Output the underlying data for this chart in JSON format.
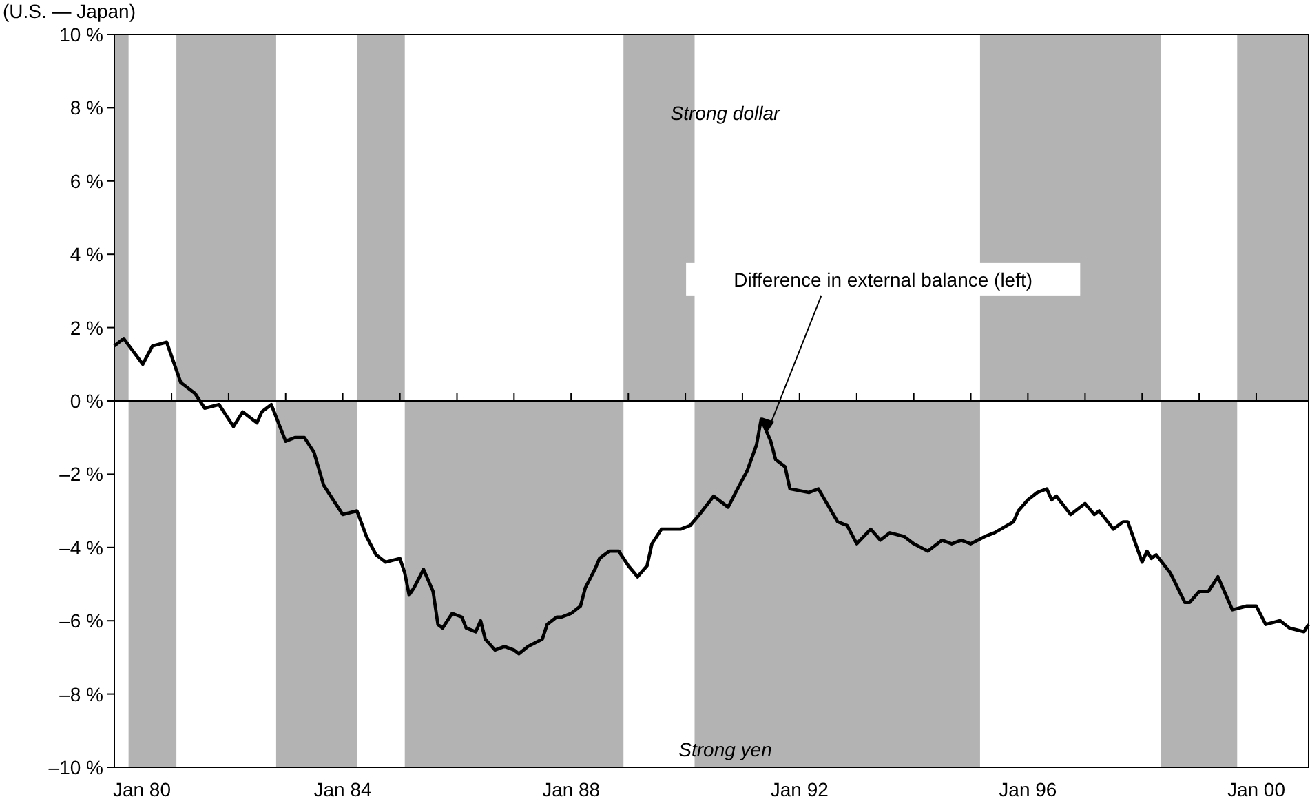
{
  "chart_data": {
    "type": "line",
    "ylabel": "(U.S. — Japan)",
    "xlim": [
      "1980-01",
      "2000-12"
    ],
    "xticks": [
      {
        "value": "1980-01",
        "label": "Jan 80"
      },
      {
        "value": "1981-01",
        "label": null
      },
      {
        "value": "1982-01",
        "label": null
      },
      {
        "value": "1983-01",
        "label": null
      },
      {
        "value": "1984-01",
        "label": "Jan 84"
      },
      {
        "value": "1985-01",
        "label": null
      },
      {
        "value": "1986-01",
        "label": null
      },
      {
        "value": "1987-01",
        "label": null
      },
      {
        "value": "1988-01",
        "label": "Jan 88"
      },
      {
        "value": "1989-01",
        "label": null
      },
      {
        "value": "1990-01",
        "label": null
      },
      {
        "value": "1991-01",
        "label": null
      },
      {
        "value": "1992-01",
        "label": "Jan 92"
      },
      {
        "value": "1993-01",
        "label": null
      },
      {
        "value": "1994-01",
        "label": null
      },
      {
        "value": "1995-01",
        "label": null
      },
      {
        "value": "1996-01",
        "label": "Jan 96"
      },
      {
        "value": "1997-01",
        "label": null
      },
      {
        "value": "1998-01",
        "label": null
      },
      {
        "value": "1999-01",
        "label": null
      },
      {
        "value": "2000-01",
        "label": "Jan 00"
      }
    ],
    "ylim": [
      -10,
      10
    ],
    "yticks": [
      {
        "value": -10,
        "label": "–10 %"
      },
      {
        "value": -8,
        "label": "–8 %"
      },
      {
        "value": -6,
        "label": "–6 %"
      },
      {
        "value": -4,
        "label": "–4 %"
      },
      {
        "value": -2,
        "label": "–2 %"
      },
      {
        "value": 0,
        "label": "0 %"
      },
      {
        "value": 2,
        "label": "2 %"
      },
      {
        "value": 4,
        "label": "4 %"
      },
      {
        "value": 6,
        "label": "6 %"
      },
      {
        "value": 8,
        "label": "8 %"
      },
      {
        "value": 10,
        "label": "10 %"
      }
    ],
    "annotations": [
      "Strong dollar",
      "Strong yen",
      {
        "text": "Difference in external balance (left)",
        "x": "1991-06",
        "y": -0.9
      }
    ],
    "series": [
      {
        "type": "area",
        "color": "#b3b3b3",
        "x": [
          "1980-01",
          "1980-04",
          "1980-04",
          "1981-02",
          "1981-02",
          "1982-11",
          "1982-11",
          "1984-04",
          "1984-04",
          "1985-02",
          "1985-02",
          "1988-12",
          "1988-12",
          "1990-03",
          "1990-03",
          "1995-03",
          "1995-03",
          "1998-05",
          "1998-05",
          "1999-09",
          "1999-09",
          "2000-12"
        ],
        "values": [
          10,
          10,
          -10,
          -10,
          10,
          10,
          -10,
          -10,
          10,
          10,
          -10,
          -10,
          10,
          10,
          -10,
          -10,
          10,
          10,
          -10,
          -10,
          10,
          10
        ]
      },
      {
        "color": "#000000",
        "x": [
          "1980-01",
          "1980-03",
          "1980-07",
          "1980-09",
          "1980-12",
          "1981-03",
          "1981-06",
          "1981-08",
          "1981-11",
          "1982-02",
          "1982-04",
          "1982-07",
          "1982-08",
          "1982-10",
          "1983-01",
          "1983-03",
          "1983-05",
          "1983-07",
          "1983-09",
          "1983-11",
          "1984-01",
          "1984-04",
          "1984-06",
          "1984-08",
          "1984-10",
          "1985-01",
          "1985-02",
          "1985-03",
          "1985-04",
          "1985-06",
          "1985-08",
          "1985-09",
          "1985-10",
          "1985-12",
          "1986-02",
          "1986-03",
          "1986-05",
          "1986-06",
          "1986-07",
          "1986-09",
          "1986-11",
          "1987-01",
          "1987-02",
          "1987-04",
          "1987-07",
          "1987-08",
          "1987-10",
          "1987-11",
          "1988-01",
          "1988-03",
          "1988-04",
          "1988-06",
          "1988-07",
          "1988-09",
          "1988-11",
          "1989-01",
          "1989-03",
          "1989-05",
          "1989-06",
          "1989-08",
          "1989-12",
          "1990-02",
          "1990-04",
          "1990-07",
          "1990-10",
          "1990-12",
          "1991-02",
          "1991-04",
          "1991-05",
          "1991-07",
          "1991-08",
          "1991-10",
          "1991-11",
          "1992-03",
          "1992-05",
          "1992-09",
          "1992-11",
          "1993-01",
          "1993-04",
          "1993-06",
          "1993-08",
          "1993-11",
          "1994-01",
          "1994-04",
          "1994-07",
          "1994-09",
          "1994-11",
          "1995-01",
          "1995-04",
          "1995-06",
          "1995-10",
          "1995-11",
          "1996-01",
          "1996-03",
          "1996-05",
          "1996-06",
          "1996-07",
          "1996-10",
          "1997-01",
          "1997-03",
          "1997-04",
          "1997-07",
          "1997-09",
          "1997-10",
          "1998-01",
          "1998-02",
          "1998-03",
          "1998-04",
          "1998-07",
          "1998-10",
          "1998-11",
          "1999-01",
          "1999-03",
          "1999-05",
          "1999-08",
          "1999-11",
          "2000-01",
          "2000-03",
          "2000-06",
          "2000-08",
          "2000-11",
          "2000-12"
        ],
        "values": [
          1.5,
          1.7,
          1.0,
          1.5,
          1.6,
          0.5,
          0.2,
          -0.2,
          -0.1,
          -0.7,
          -0.3,
          -0.6,
          -0.3,
          -0.1,
          -1.1,
          -1.0,
          -1.0,
          -1.4,
          -2.3,
          -2.7,
          -3.1,
          -3.0,
          -3.7,
          -4.2,
          -4.4,
          -4.3,
          -4.7,
          -5.3,
          -5.1,
          -4.6,
          -5.2,
          -6.1,
          -6.2,
          -5.8,
          -5.9,
          -6.2,
          -6.3,
          -6.0,
          -6.5,
          -6.8,
          -6.7,
          -6.8,
          -6.9,
          -6.7,
          -6.5,
          -6.1,
          -5.9,
          -5.9,
          -5.8,
          -5.6,
          -5.1,
          -4.6,
          -4.3,
          -4.1,
          -4.1,
          -4.5,
          -4.8,
          -4.5,
          -3.9,
          -3.5,
          -3.5,
          -3.4,
          -3.1,
          -2.6,
          -2.9,
          -2.4,
          -1.9,
          -1.2,
          -0.5,
          -1.1,
          -1.6,
          -1.8,
          -2.4,
          -2.5,
          -2.4,
          -3.3,
          -3.4,
          -3.9,
          -3.5,
          -3.8,
          -3.6,
          -3.7,
          -3.9,
          -4.1,
          -3.8,
          -3.9,
          -3.8,
          -3.9,
          -3.7,
          -3.6,
          -3.3,
          -3.0,
          -2.7,
          -2.5,
          -2.4,
          -2.7,
          -2.6,
          -3.1,
          -2.8,
          -3.1,
          -3.0,
          -3.5,
          -3.3,
          -3.3,
          -4.4,
          -4.1,
          -4.3,
          -4.2,
          -4.7,
          -5.5,
          -5.5,
          -5.2,
          -5.2,
          -4.8,
          -5.7,
          -5.6,
          -5.6,
          -6.1,
          -6.0,
          -6.2,
          -6.3,
          -6.1
        ]
      }
    ]
  }
}
